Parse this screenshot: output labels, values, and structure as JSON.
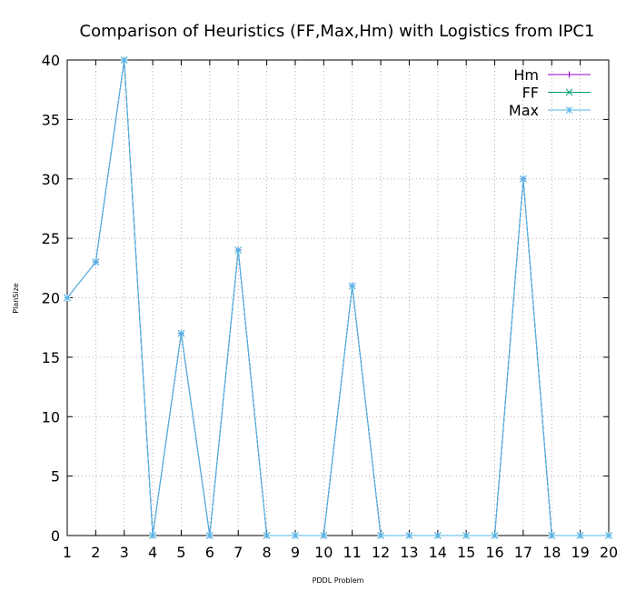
{
  "chart_data": {
    "type": "line",
    "title": "Comparison of Heuristics (FF,Max,Hm) with Logistics from IPC1",
    "xlabel": "PDDL Problem",
    "ylabel": "PlanSize",
    "x": [
      1,
      2,
      3,
      4,
      5,
      6,
      7,
      8,
      9,
      10,
      11,
      12,
      13,
      14,
      15,
      16,
      17,
      18,
      19,
      20
    ],
    "xlim": [
      1,
      20
    ],
    "ylim": [
      0,
      40
    ],
    "yticks": [
      0,
      5,
      10,
      15,
      20,
      25,
      30,
      35,
      40
    ],
    "xticks": [
      1,
      2,
      3,
      4,
      5,
      6,
      7,
      8,
      9,
      10,
      11,
      12,
      13,
      14,
      15,
      16,
      17,
      18,
      19,
      20
    ],
    "grid": true,
    "legend_position": "top-right",
    "series": [
      {
        "name": "Hm",
        "marker": "+",
        "color": "#9400d3",
        "values": [
          20,
          23,
          40,
          0,
          17,
          0,
          24,
          0,
          0,
          0,
          21,
          0,
          0,
          0,
          0,
          0,
          30,
          0,
          0,
          0
        ]
      },
      {
        "name": "FF",
        "marker": "x",
        "color": "#009e73",
        "values": [
          20,
          23,
          40,
          0,
          17,
          0,
          24,
          0,
          0,
          0,
          21,
          0,
          0,
          0,
          0,
          0,
          30,
          0,
          0,
          0
        ]
      },
      {
        "name": "Max",
        "marker": "*",
        "color": "#56b4e9",
        "values": [
          20,
          23,
          40,
          0,
          17,
          0,
          24,
          0,
          0,
          0,
          21,
          0,
          0,
          0,
          0,
          0,
          30,
          0,
          0,
          0
        ]
      }
    ]
  }
}
